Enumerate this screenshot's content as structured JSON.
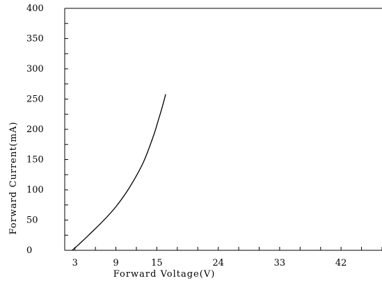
{
  "chart_data": {
    "type": "line",
    "title": "",
    "xlabel": "Forward Voltage(V)",
    "ylabel": "Forward Current(mA)",
    "xlim": [
      1.5,
      48
    ],
    "ylim": [
      0,
      400
    ],
    "x_ticks": [
      3,
      9,
      15,
      24,
      33,
      42
    ],
    "y_ticks": [
      0,
      50,
      100,
      150,
      200,
      250,
      300,
      350,
      400
    ],
    "grid": false,
    "legend": "none",
    "line_color": "#000000",
    "series": [
      {
        "x": [
          2.6,
          3.5,
          5.0,
          7.0,
          9.0,
          11.0,
          13.0,
          14.5,
          15.3,
          15.8,
          16.3
        ],
        "values": [
          0,
          9,
          25,
          47,
          72,
          104,
          145,
          189,
          218,
          237,
          258
        ]
      }
    ]
  }
}
